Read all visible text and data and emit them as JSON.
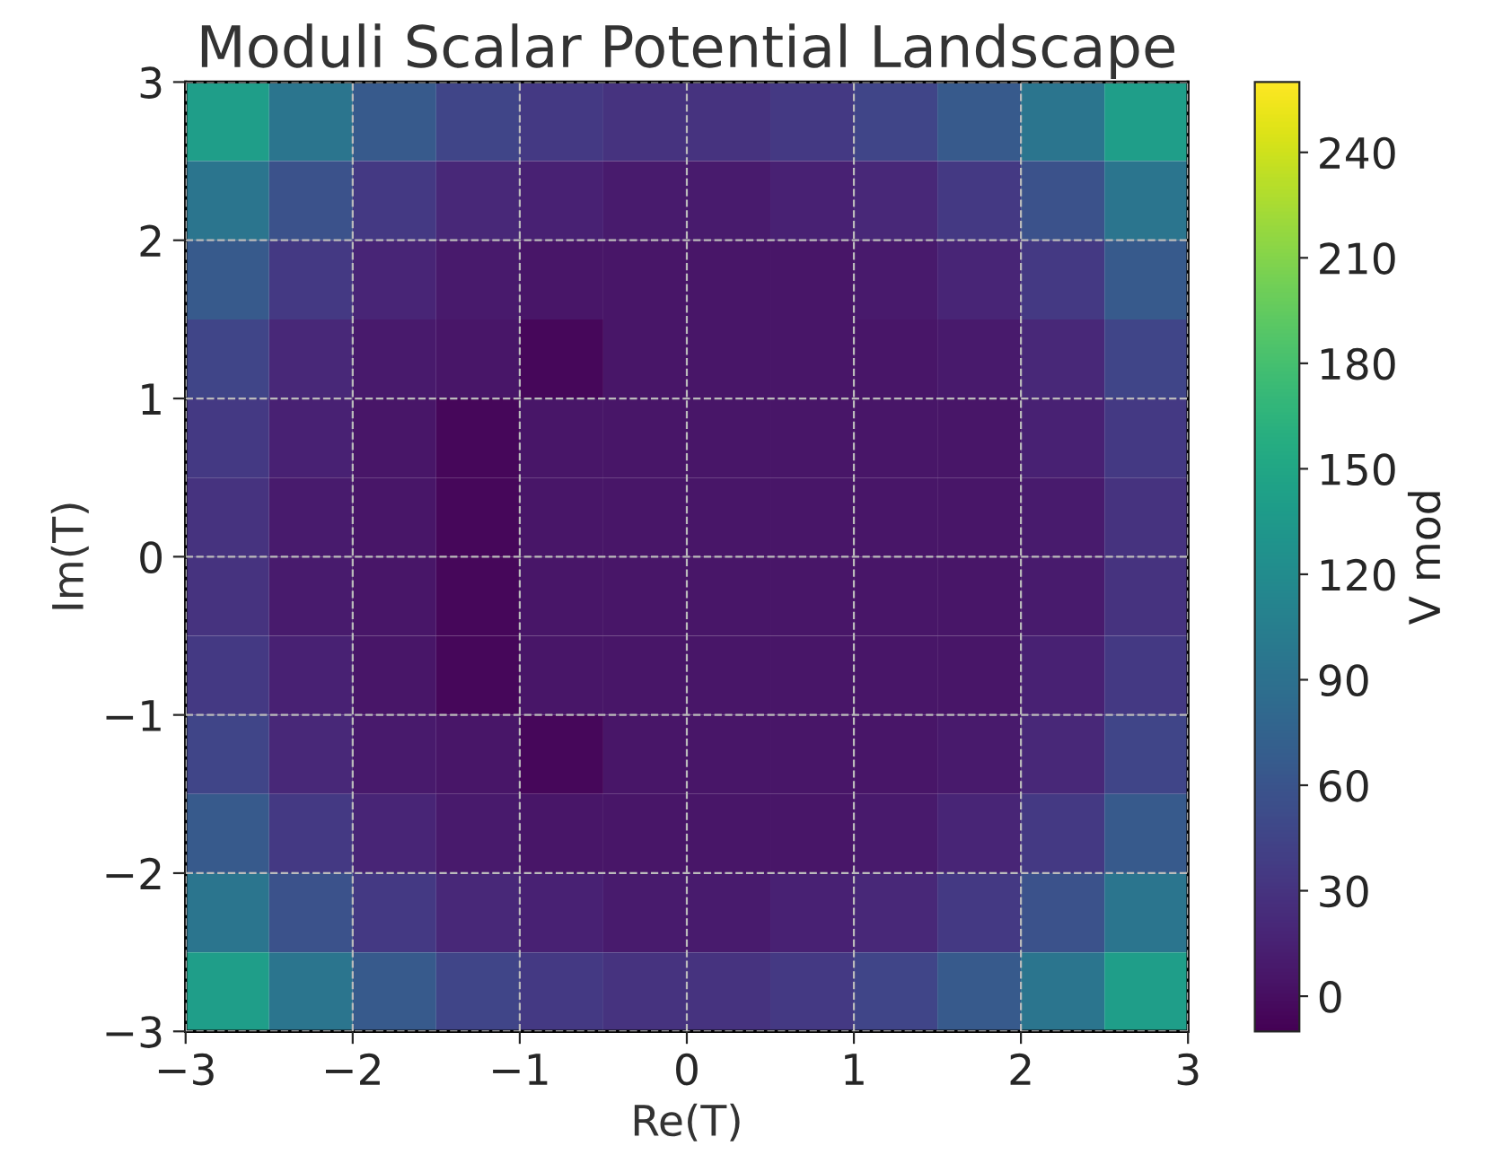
{
  "chart_data": {
    "type": "heatmap",
    "title": "Moduli Scalar Potential Landscape",
    "xlabel": "Re(T)",
    "ylabel": "Im(T)",
    "clabel": "V mod",
    "x": [
      -2.75,
      -2.25,
      -1.75,
      -1.25,
      -0.75,
      -0.25,
      0.25,
      0.75,
      1.25,
      1.75,
      2.25,
      2.75
    ],
    "y": [
      2.75,
      2.25,
      1.75,
      1.25,
      0.75,
      0.25,
      -0.25,
      -0.75,
      -1.25,
      -1.75,
      -2.25,
      -2.75
    ],
    "cells": [
      [
        140,
        95,
        65,
        45,
        35,
        30,
        30,
        35,
        45,
        65,
        95,
        140
      ],
      [
        95,
        58,
        35,
        20,
        15,
        10,
        10,
        15,
        20,
        35,
        58,
        95
      ],
      [
        65,
        35,
        18,
        8,
        5,
        5,
        5,
        5,
        8,
        18,
        35,
        65
      ],
      [
        45,
        20,
        8,
        5,
        -5,
        5,
        5,
        5,
        5,
        8,
        20,
        45
      ],
      [
        35,
        15,
        5,
        -5,
        5,
        5,
        5,
        5,
        5,
        5,
        15,
        35
      ],
      [
        30,
        10,
        5,
        -5,
        5,
        5,
        5,
        5,
        5,
        5,
        10,
        30
      ],
      [
        30,
        10,
        5,
        -5,
        5,
        5,
        5,
        5,
        5,
        5,
        10,
        30
      ],
      [
        35,
        15,
        5,
        -5,
        5,
        5,
        5,
        5,
        5,
        5,
        15,
        35
      ],
      [
        45,
        20,
        8,
        5,
        -5,
        5,
        5,
        5,
        5,
        8,
        20,
        45
      ],
      [
        65,
        35,
        18,
        8,
        5,
        5,
        5,
        5,
        8,
        18,
        35,
        65
      ],
      [
        95,
        58,
        35,
        20,
        15,
        10,
        10,
        15,
        20,
        35,
        58,
        95
      ],
      [
        140,
        95,
        65,
        45,
        35,
        30,
        30,
        35,
        45,
        65,
        95,
        140
      ]
    ],
    "clim": [
      -10,
      260
    ],
    "cticks": [
      0,
      30,
      60,
      90,
      120,
      150,
      180,
      210,
      240
    ],
    "xlim": [
      -3,
      3
    ],
    "ylim": [
      -3,
      3
    ],
    "xticks": [
      -3,
      -2,
      -1,
      0,
      1,
      2,
      3
    ],
    "yticks": [
      -3,
      -2,
      -1,
      0,
      1,
      2,
      3
    ],
    "grid": true
  }
}
